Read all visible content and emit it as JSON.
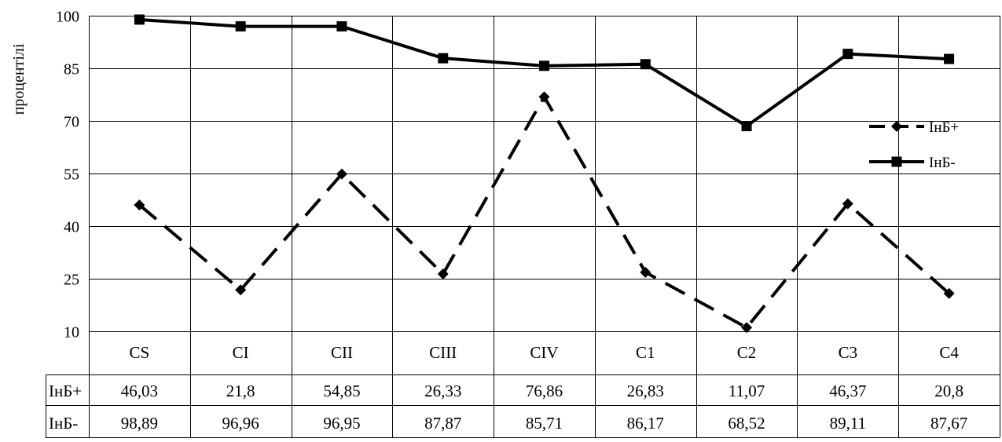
{
  "chart_data": {
    "type": "line",
    "ylabel": "процентілі",
    "ylim": [
      10,
      100
    ],
    "yticks": [
      10,
      25,
      40,
      55,
      70,
      85,
      100
    ],
    "categories": [
      "CS",
      "CI",
      "CII",
      "CIII",
      "CIV",
      "C1",
      "C2",
      "C3",
      "C4"
    ],
    "grid": true,
    "legend_position": "right",
    "series": [
      {
        "name": "ІнБ+",
        "style": "dashed",
        "marker": "diamond",
        "color": "#000000",
        "values": [
          46.03,
          21.8,
          54.85,
          26.33,
          76.86,
          26.83,
          11.07,
          46.37,
          20.8
        ],
        "labels": [
          "46,03",
          "21,8",
          "54,85",
          "26,33",
          "76,86",
          "26,83",
          "11,07",
          "46,37",
          "20,8"
        ]
      },
      {
        "name": "ІнБ-",
        "style": "solid",
        "marker": "square",
        "color": "#000000",
        "values": [
          98.89,
          96.96,
          96.95,
          87.87,
          85.71,
          86.17,
          68.52,
          89.11,
          87.67
        ],
        "labels": [
          "98,89",
          "96,96",
          "96,95",
          "87,87",
          "85,71",
          "86,17",
          "68,52",
          "89,11",
          "87,67"
        ]
      }
    ]
  }
}
